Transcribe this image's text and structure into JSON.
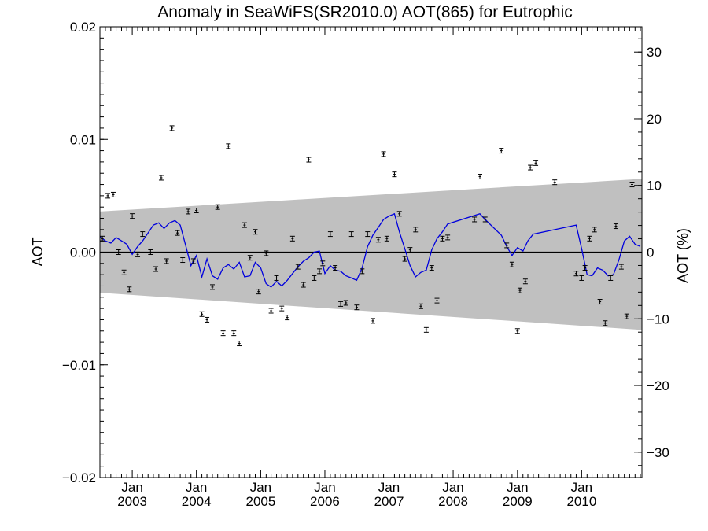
{
  "chart_data": {
    "type": "scatter",
    "title": "Anomaly in SeaWiFS(SR2010.0) AOT(865) for Eutrophic",
    "ylabel": "AOT",
    "y2label": "AOT (%)",
    "xlim": [
      "2002-07-01",
      "2010-12-10"
    ],
    "ylim": [
      -0.02,
      0.02
    ],
    "y2lim": [
      -33.8,
      33.8
    ],
    "yticks": [
      {
        "value": 0.02,
        "label": "0.02"
      },
      {
        "value": 0.01,
        "label": "0.01"
      },
      {
        "value": 0.0,
        "label": "0.00"
      },
      {
        "value": -0.01,
        "label": "−0.01"
      },
      {
        "value": -0.02,
        "label": "−0.02"
      }
    ],
    "y2ticks": [
      {
        "value": 30,
        "label": "30"
      },
      {
        "value": 20,
        "label": "20"
      },
      {
        "value": 10,
        "label": "10"
      },
      {
        "value": 0,
        "label": "0"
      },
      {
        "value": -10,
        "label": "−10"
      },
      {
        "value": -20,
        "label": "−20"
      },
      {
        "value": -30,
        "label": "−30"
      }
    ],
    "xticks": [
      {
        "date": "2003-01-01",
        "month": "Jan",
        "year": "2003"
      },
      {
        "date": "2004-01-01",
        "month": "Jan",
        "year": "2004"
      },
      {
        "date": "2005-01-01",
        "month": "Jan",
        "year": "2005"
      },
      {
        "date": "2006-01-01",
        "month": "Jan",
        "year": "2006"
      },
      {
        "date": "2007-01-01",
        "month": "Jan",
        "year": "2007"
      },
      {
        "date": "2008-01-01",
        "month": "Jan",
        "year": "2008"
      },
      {
        "date": "2009-01-01",
        "month": "Jan",
        "year": "2009"
      },
      {
        "date": "2010-01-01",
        "month": "Jan",
        "year": "2010"
      }
    ],
    "band": {
      "x": [
        "2002-07-01",
        "2010-12-10"
      ],
      "upper": [
        0.0036,
        0.0065
      ],
      "lower": [
        -0.0036,
        -0.0069
      ],
      "color": "#c0c0c0"
    },
    "zero_line": 0.0,
    "points_color": "#000000",
    "points": [
      {
        "x": "2002-07-15",
        "y": 0.0012
      },
      {
        "x": "2002-08-15",
        "y": 0.005
      },
      {
        "x": "2002-09-15",
        "y": 0.0051
      },
      {
        "x": "2002-10-15",
        "y": 0.0
      },
      {
        "x": "2002-11-15",
        "y": -0.0018
      },
      {
        "x": "2002-12-15",
        "y": -0.0033
      },
      {
        "x": "2003-01-01",
        "y": 0.0032
      },
      {
        "x": "2003-02-01",
        "y": -0.0002
      },
      {
        "x": "2003-03-01",
        "y": 0.0016
      },
      {
        "x": "2003-04-15",
        "y": 0.0
      },
      {
        "x": "2003-05-15",
        "y": -0.0015
      },
      {
        "x": "2003-06-15",
        "y": 0.0066
      },
      {
        "x": "2003-07-15",
        "y": -0.0008
      },
      {
        "x": "2003-08-15",
        "y": 0.011
      },
      {
        "x": "2003-09-15",
        "y": 0.0017
      },
      {
        "x": "2003-10-15",
        "y": -0.0007
      },
      {
        "x": "2003-11-15",
        "y": 0.0036
      },
      {
        "x": "2003-12-15",
        "y": -0.0008
      },
      {
        "x": "2004-01-01",
        "y": 0.0037
      },
      {
        "x": "2004-02-01",
        "y": -0.0055
      },
      {
        "x": "2004-03-01",
        "y": -0.006
      },
      {
        "x": "2004-04-01",
        "y": -0.0031
      },
      {
        "x": "2004-05-01",
        "y": 0.004
      },
      {
        "x": "2004-06-01",
        "y": -0.0072
      },
      {
        "x": "2004-07-01",
        "y": 0.0094
      },
      {
        "x": "2004-08-01",
        "y": -0.0072
      },
      {
        "x": "2004-09-01",
        "y": -0.0081
      },
      {
        "x": "2004-10-01",
        "y": 0.0024
      },
      {
        "x": "2004-11-01",
        "y": -0.0005
      },
      {
        "x": "2004-12-01",
        "y": 0.0018
      },
      {
        "x": "2004-12-20",
        "y": -0.0035
      },
      {
        "x": "2005-02-01",
        "y": -0.0001
      },
      {
        "x": "2005-03-01",
        "y": -0.0052
      },
      {
        "x": "2005-04-01",
        "y": -0.0023
      },
      {
        "x": "2005-05-01",
        "y": -0.005
      },
      {
        "x": "2005-06-01",
        "y": -0.0058
      },
      {
        "x": "2005-07-01",
        "y": 0.0012
      },
      {
        "x": "2005-08-01",
        "y": -0.0013
      },
      {
        "x": "2005-09-01",
        "y": -0.0029
      },
      {
        "x": "2005-10-01",
        "y": 0.0082
      },
      {
        "x": "2005-11-01",
        "y": -0.0023
      },
      {
        "x": "2005-12-01",
        "y": -0.0017
      },
      {
        "x": "2005-12-20",
        "y": -0.001
      },
      {
        "x": "2006-02-01",
        "y": 0.0016
      },
      {
        "x": "2006-03-01",
        "y": -0.0014
      },
      {
        "x": "2006-04-01",
        "y": -0.0046
      },
      {
        "x": "2006-05-01",
        "y": -0.0045
      },
      {
        "x": "2006-06-01",
        "y": 0.0016
      },
      {
        "x": "2006-07-01",
        "y": -0.0049
      },
      {
        "x": "2006-08-01",
        "y": -0.0017
      },
      {
        "x": "2006-09-01",
        "y": 0.0016
      },
      {
        "x": "2006-10-01",
        "y": -0.0061
      },
      {
        "x": "2006-11-01",
        "y": 0.0011
      },
      {
        "x": "2006-12-01",
        "y": 0.0087
      },
      {
        "x": "2006-12-20",
        "y": 0.0012
      },
      {
        "x": "2007-02-01",
        "y": 0.0069
      },
      {
        "x": "2007-03-01",
        "y": 0.0034
      },
      {
        "x": "2007-04-01",
        "y": -0.0006
      },
      {
        "x": "2007-05-01",
        "y": 0.0002
      },
      {
        "x": "2007-06-01",
        "y": 0.002
      },
      {
        "x": "2007-07-01",
        "y": -0.0048
      },
      {
        "x": "2007-08-01",
        "y": -0.0069
      },
      {
        "x": "2007-09-01",
        "y": -0.0014
      },
      {
        "x": "2007-10-01",
        "y": -0.0043
      },
      {
        "x": "2007-11-01",
        "y": 0.0012
      },
      {
        "x": "2007-12-01",
        "y": 0.0013
      },
      {
        "x": "2008-05-01",
        "y": 0.0029
      },
      {
        "x": "2008-06-01",
        "y": 0.0067
      },
      {
        "x": "2008-07-01",
        "y": 0.0029
      },
      {
        "x": "2008-10-01",
        "y": 0.009
      },
      {
        "x": "2008-11-01",
        "y": 0.0006
      },
      {
        "x": "2008-12-01",
        "y": -0.0011
      },
      {
        "x": "2009-01-01",
        "y": -0.007
      },
      {
        "x": "2009-01-15",
        "y": -0.0034
      },
      {
        "x": "2009-02-15",
        "y": -0.0026
      },
      {
        "x": "2009-03-15",
        "y": 0.0075
      },
      {
        "x": "2009-04-15",
        "y": 0.0079
      },
      {
        "x": "2009-08-01",
        "y": 0.0062
      },
      {
        "x": "2009-12-01",
        "y": -0.0019
      },
      {
        "x": "2010-01-01",
        "y": -0.0023
      },
      {
        "x": "2010-01-20",
        "y": -0.0014
      },
      {
        "x": "2010-02-15",
        "y": 0.0012
      },
      {
        "x": "2010-03-15",
        "y": 0.002
      },
      {
        "x": "2010-04-15",
        "y": -0.0044
      },
      {
        "x": "2010-05-15",
        "y": -0.0063
      },
      {
        "x": "2010-06-15",
        "y": -0.0023
      },
      {
        "x": "2010-07-15",
        "y": 0.0023
      },
      {
        "x": "2010-08-15",
        "y": -0.0013
      },
      {
        "x": "2010-09-15",
        "y": -0.0057
      },
      {
        "x": "2010-10-15",
        "y": 0.006
      }
    ],
    "line_color": "#0000dd",
    "line": {
      "x": [
        "2002-07-01",
        "2002-08-01",
        "2002-09-01",
        "2002-10-01",
        "2002-11-01",
        "2002-12-01",
        "2003-01-01",
        "2003-02-01",
        "2003-03-01",
        "2003-04-01",
        "2003-05-01",
        "2003-06-01",
        "2003-07-01",
        "2003-08-01",
        "2003-09-01",
        "2003-10-01",
        "2003-11-01",
        "2003-12-01",
        "2004-01-01",
        "2004-02-01",
        "2004-03-01",
        "2004-04-01",
        "2004-05-01",
        "2004-06-01",
        "2004-07-01",
        "2004-08-01",
        "2004-09-01",
        "2004-10-01",
        "2004-11-01",
        "2004-12-01",
        "2005-01-01",
        "2005-02-01",
        "2005-03-01",
        "2005-04-01",
        "2005-05-01",
        "2005-06-01",
        "2005-07-01",
        "2005-08-01",
        "2005-09-01",
        "2005-10-01",
        "2005-11-01",
        "2005-12-01",
        "2006-01-01",
        "2006-02-01",
        "2006-03-01",
        "2006-04-01",
        "2006-05-01",
        "2006-06-01",
        "2006-07-01",
        "2006-08-01",
        "2006-09-01",
        "2006-10-01",
        "2006-11-01",
        "2006-12-01",
        "2007-01-01",
        "2007-02-01",
        "2007-03-01",
        "2007-04-01",
        "2007-05-01",
        "2007-06-01",
        "2007-07-01",
        "2007-08-01",
        "2007-09-01",
        "2007-10-01",
        "2007-11-01",
        "2007-12-01",
        "2008-06-01",
        "2008-07-01",
        "2008-10-01",
        "2008-11-01",
        "2008-12-01",
        "2009-01-01",
        "2009-02-01",
        "2009-03-01",
        "2009-04-01",
        "2009-08-01",
        "2009-12-01",
        "2010-01-01",
        "2010-02-01",
        "2010-03-01",
        "2010-04-01",
        "2010-05-01",
        "2010-06-01",
        "2010-07-01",
        "2010-08-01",
        "2010-09-01",
        "2010-10-01",
        "2010-11-01",
        "2010-12-01"
      ],
      "y": [
        0.0014,
        0.001,
        0.0008,
        0.0013,
        0.001,
        0.0007,
        -0.0002,
        0.0005,
        0.001,
        0.0017,
        0.0024,
        0.0026,
        0.0021,
        0.0026,
        0.0028,
        0.0024,
        0.0006,
        -0.0012,
        -0.0003,
        -0.0022,
        -0.0006,
        -0.0021,
        -0.0024,
        -0.0014,
        -0.0011,
        -0.0015,
        -0.0009,
        -0.0022,
        -0.0021,
        -0.0009,
        -0.0014,
        -0.0028,
        -0.0031,
        -0.0026,
        -0.003,
        -0.0025,
        -0.0019,
        -0.0013,
        -0.0008,
        -0.0005,
        0.0,
        0.0001,
        -0.0019,
        -0.0012,
        -0.0016,
        -0.0017,
        -0.0021,
        -0.0023,
        -0.0025,
        -0.0014,
        0.0005,
        0.0015,
        0.0022,
        0.0029,
        0.0032,
        0.0034,
        0.0018,
        0.0003,
        -0.0012,
        -0.0022,
        -0.0018,
        -0.0016,
        0.0002,
        0.0012,
        0.0018,
        0.0025,
        0.0034,
        0.0029,
        0.0015,
        0.0005,
        -0.0003,
        0.0004,
        0.0001,
        0.001,
        0.0016,
        0.002,
        0.0024,
        0.0003,
        -0.002,
        -0.0021,
        -0.0014,
        -0.0016,
        -0.0021,
        -0.002,
        -0.0007,
        0.001,
        0.0014,
        0.0007,
        0.0005
      ]
    }
  }
}
